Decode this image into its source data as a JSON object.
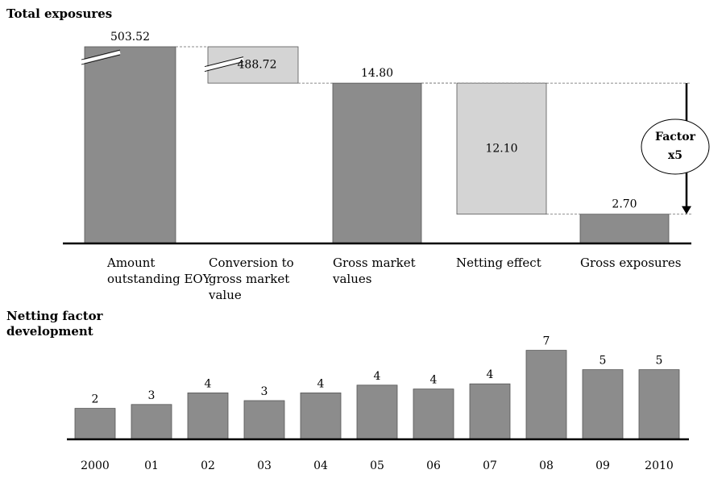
{
  "chart_data": [
    {
      "type": "waterfall",
      "title": "Total exposures",
      "categories": [
        "Amount outstanding EOY",
        "Conversion to gross market value",
        "Gross market values",
        "Netting effect",
        "Gross exposures"
      ],
      "values": [
        503.52,
        488.72,
        14.8,
        12.1,
        2.7
      ],
      "value_labels": [
        "503.52",
        "488.72",
        "14.80",
        "12.10",
        "2.70"
      ],
      "measure": [
        "total",
        "decrease",
        "total",
        "decrease",
        "total"
      ],
      "total_color": "#8c8c8c",
      "decrease_color": "#d4d4d4",
      "ylim": [
        0,
        16
      ],
      "annotation": [
        "Factor",
        "x5"
      ]
    },
    {
      "type": "bar",
      "title": "Netting factor development",
      "categories": [
        "2000",
        "01",
        "02",
        "03",
        "04",
        "05",
        "06",
        "07",
        "08",
        "09",
        "2010"
      ],
      "values": [
        2.4,
        2.7,
        3.6,
        3.0,
        3.6,
        4.2,
        3.9,
        4.3,
        6.9,
        5.4,
        5.4
      ],
      "value_labels": [
        "2",
        "3",
        "4",
        "3",
        "4",
        "4",
        "4",
        "4",
        "7",
        "5",
        "5"
      ],
      "color": "#8c8c8c",
      "ylim": [
        0,
        8
      ]
    }
  ]
}
